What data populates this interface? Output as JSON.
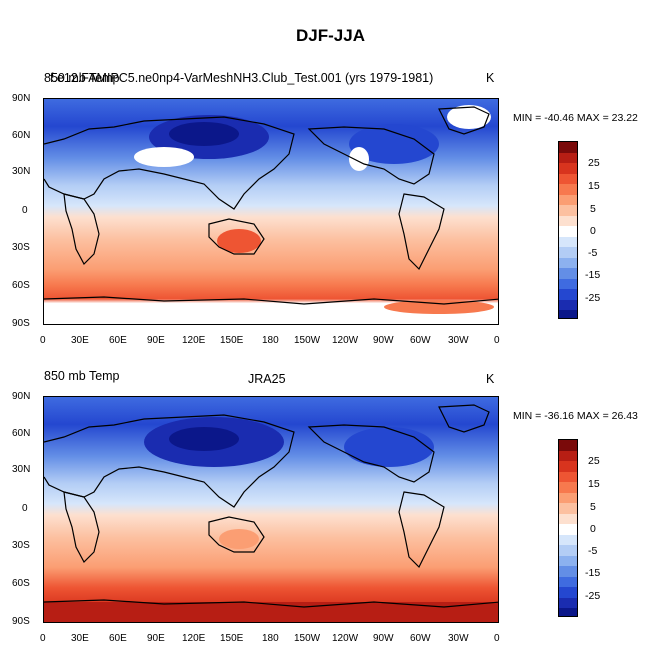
{
  "figure": {
    "title": "DJF-JJA"
  },
  "panels": [
    {
      "variable": "850 mb Temp",
      "case_title": "f.e12.FAMIPC5.ne0np4-VarMeshNH3.Club_Test.001 (yrs 1979-1981)",
      "units": "K",
      "stats_text": "MIN = -40.46 MAX =  23.22"
    },
    {
      "variable": "850 mb Temp",
      "case_title": "JRA25",
      "units": "K",
      "stats_text": "MIN = -36.16 MAX =  26.43"
    }
  ],
  "axes": {
    "lat_labels": [
      "90N",
      "60N",
      "30N",
      "0",
      "30S",
      "60S",
      "90S"
    ],
    "lon_labels": [
      "0",
      "30E",
      "60E",
      "90E",
      "120E",
      "150E",
      "180",
      "150W",
      "120W",
      "90W",
      "60W",
      "30W",
      "0"
    ]
  },
  "colorbar": {
    "labels": [
      "25",
      "15",
      "5",
      "0",
      "-5",
      "-15",
      "-25"
    ],
    "colors": [
      "#7a0a0a",
      "#b71e14",
      "#d8341e",
      "#ee5533",
      "#f7794e",
      "#fb9e73",
      "#fcc0a0",
      "#fde0cf",
      "#ffffff",
      "#d6e6fb",
      "#b3cdf5",
      "#8cb1ef",
      "#638ee6",
      "#3f6be0",
      "#2447d0",
      "#1a2cb0",
      "#0b178a"
    ]
  },
  "chart_data": {
    "type": "heatmap",
    "title": "DJF-JJA",
    "ylabel": "",
    "xlabel": "",
    "x": [
      "0",
      "30E",
      "60E",
      "90E",
      "120E",
      "150E",
      "180",
      "150W",
      "120W",
      "90W",
      "60W",
      "30W",
      "0"
    ],
    "y": [
      "90N",
      "60N",
      "30N",
      "0",
      "30S",
      "60S",
      "90S"
    ],
    "series": [
      {
        "name": "f.e12.FAMIPC5.ne0np4-VarMeshNH3.Club_Test.001 (yrs 1979-1981)",
        "min": -40.46,
        "max": 23.22
      },
      {
        "name": "JRA25",
        "min": -36.16,
        "max": 26.43
      }
    ]
  }
}
